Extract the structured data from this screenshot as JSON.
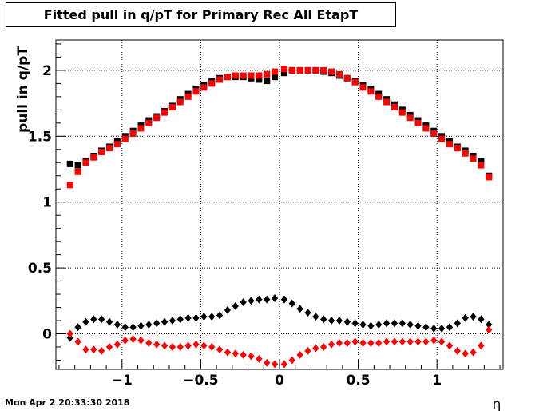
{
  "chart_data": {
    "type": "scatter",
    "title": "Fitted pull in q/pT for Primary Rec All EtapT",
    "xlabel": "η",
    "ylabel": "pull in q/pT",
    "xlim": [
      -1.42,
      1.42
    ],
    "ylim": [
      -0.27,
      2.23
    ],
    "x_ticks": [
      -1,
      -0.5,
      0,
      0.5,
      1
    ],
    "x_tick_labels": [
      "−1",
      "−0.5",
      "0",
      "0.5",
      "1"
    ],
    "y_ticks": [
      0,
      0.5,
      1,
      1.5,
      2
    ],
    "y_tick_labels": [
      "0",
      "0.5",
      "1",
      "1.5",
      "2"
    ],
    "grid": true,
    "x": [
      -1.33,
      -1.28,
      -1.23,
      -1.18,
      -1.13,
      -1.08,
      -1.03,
      -0.98,
      -0.93,
      -0.88,
      -0.83,
      -0.78,
      -0.73,
      -0.68,
      -0.63,
      -0.58,
      -0.53,
      -0.48,
      -0.43,
      -0.38,
      -0.33,
      -0.28,
      -0.23,
      -0.18,
      -0.13,
      -0.08,
      -0.03,
      0.03,
      0.08,
      0.13,
      0.18,
      0.23,
      0.28,
      0.33,
      0.38,
      0.43,
      0.48,
      0.53,
      0.58,
      0.63,
      0.68,
      0.73,
      0.78,
      0.83,
      0.88,
      0.93,
      0.98,
      1.03,
      1.08,
      1.13,
      1.18,
      1.23,
      1.28,
      1.33
    ],
    "series": [
      {
        "marker": "square",
        "color": "#000000",
        "values": [
          1.29,
          1.28,
          1.31,
          1.35,
          1.39,
          1.42,
          1.46,
          1.5,
          1.54,
          1.58,
          1.62,
          1.65,
          1.69,
          1.73,
          1.78,
          1.82,
          1.86,
          1.89,
          1.92,
          1.94,
          1.95,
          1.95,
          1.95,
          1.94,
          1.93,
          1.92,
          1.95,
          1.98,
          2.0,
          2.0,
          2.0,
          2.0,
          1.99,
          1.98,
          1.96,
          1.94,
          1.92,
          1.89,
          1.86,
          1.82,
          1.78,
          1.74,
          1.7,
          1.66,
          1.62,
          1.58,
          1.54,
          1.5,
          1.46,
          1.42,
          1.39,
          1.35,
          1.31,
          1.2
        ]
      },
      {
        "marker": "square",
        "color": "#ff0000",
        "values": [
          1.13,
          1.23,
          1.3,
          1.34,
          1.38,
          1.41,
          1.44,
          1.48,
          1.52,
          1.56,
          1.6,
          1.64,
          1.68,
          1.72,
          1.76,
          1.8,
          1.84,
          1.87,
          1.9,
          1.93,
          1.95,
          1.96,
          1.96,
          1.96,
          1.96,
          1.97,
          1.99,
          2.01,
          2.0,
          2.0,
          2.0,
          2.0,
          2.0,
          1.99,
          1.97,
          1.94,
          1.91,
          1.87,
          1.84,
          1.8,
          1.76,
          1.72,
          1.68,
          1.64,
          1.6,
          1.56,
          1.52,
          1.48,
          1.44,
          1.41,
          1.37,
          1.33,
          1.28,
          1.19
        ]
      },
      {
        "marker": "diamond",
        "color": "#000000",
        "values": [
          -0.03,
          0.05,
          0.09,
          0.11,
          0.11,
          0.09,
          0.07,
          0.05,
          0.05,
          0.06,
          0.07,
          0.08,
          0.09,
          0.1,
          0.11,
          0.12,
          0.12,
          0.13,
          0.13,
          0.14,
          0.18,
          0.21,
          0.24,
          0.25,
          0.26,
          0.26,
          0.27,
          0.26,
          0.23,
          0.19,
          0.16,
          0.13,
          0.11,
          0.1,
          0.1,
          0.09,
          0.08,
          0.07,
          0.06,
          0.07,
          0.08,
          0.08,
          0.08,
          0.07,
          0.06,
          0.05,
          0.04,
          0.04,
          0.05,
          0.08,
          0.12,
          0.13,
          0.11,
          0.07
        ]
      },
      {
        "marker": "diamond",
        "color": "#ff0000",
        "values": [
          0.0,
          -0.06,
          -0.12,
          -0.12,
          -0.13,
          -0.1,
          -0.08,
          -0.05,
          -0.04,
          -0.05,
          -0.07,
          -0.08,
          -0.09,
          -0.1,
          -0.1,
          -0.09,
          -0.08,
          -0.09,
          -0.1,
          -0.12,
          -0.14,
          -0.15,
          -0.16,
          -0.17,
          -0.19,
          -0.22,
          -0.23,
          -0.23,
          -0.2,
          -0.16,
          -0.13,
          -0.11,
          -0.1,
          -0.08,
          -0.07,
          -0.07,
          -0.06,
          -0.07,
          -0.07,
          -0.07,
          -0.06,
          -0.06,
          -0.06,
          -0.06,
          -0.06,
          -0.06,
          -0.05,
          -0.06,
          -0.09,
          -0.13,
          -0.15,
          -0.14,
          -0.09,
          0.03
        ]
      }
    ]
  },
  "footer": {
    "timestamp": "Mon Apr  2 20:33:30 2018"
  }
}
